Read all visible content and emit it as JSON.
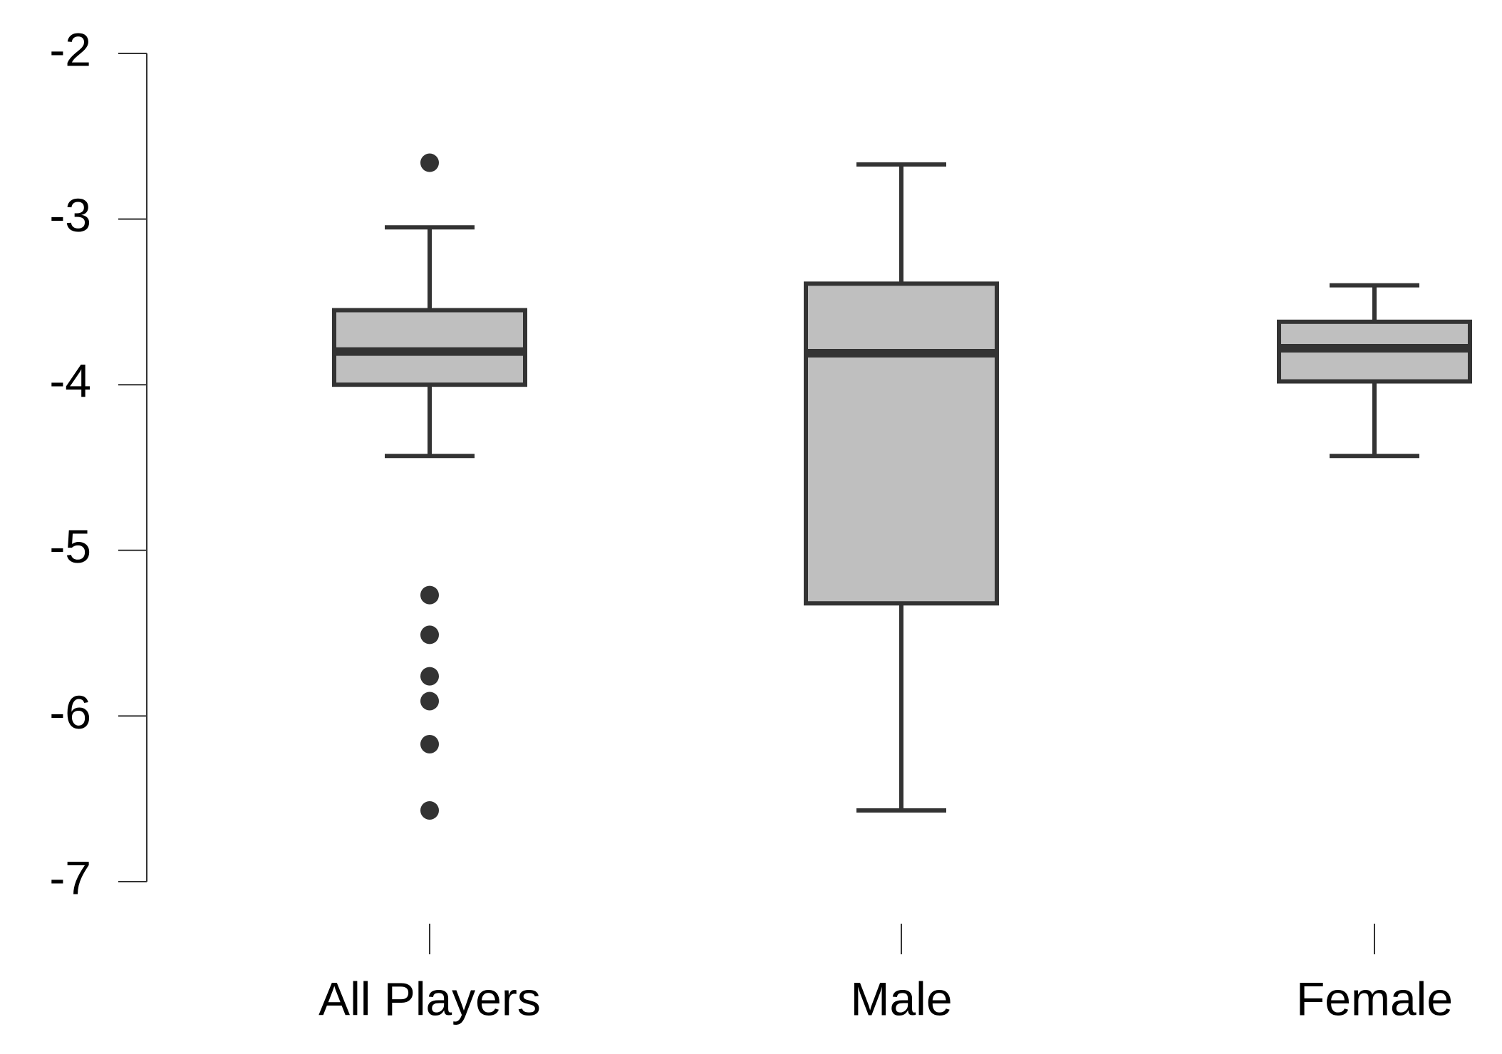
{
  "chart_data": {
    "type": "box",
    "categories": [
      "All Players",
      "Male",
      "Female"
    ],
    "boxes": [
      {
        "min": -4.43,
        "q1": -4.0,
        "median": -3.8,
        "q3": -3.55,
        "max": -3.05,
        "outliers": [
          -2.66,
          -5.27,
          -5.51,
          -5.76,
          -5.91,
          -6.17,
          -6.57
        ]
      },
      {
        "min": -6.57,
        "q1": -5.32,
        "median": -3.81,
        "q3": -3.39,
        "max": -2.67,
        "outliers": []
      },
      {
        "min": -4.43,
        "q1": -3.98,
        "median": -3.78,
        "q3": -3.62,
        "max": -3.4,
        "outliers": []
      }
    ],
    "color": "#bfbfbf",
    "edge_color": "#333333",
    "ylim": [
      -7,
      -2
    ],
    "yticks": [
      -2,
      -3,
      -4,
      -5,
      -6,
      -7
    ]
  }
}
